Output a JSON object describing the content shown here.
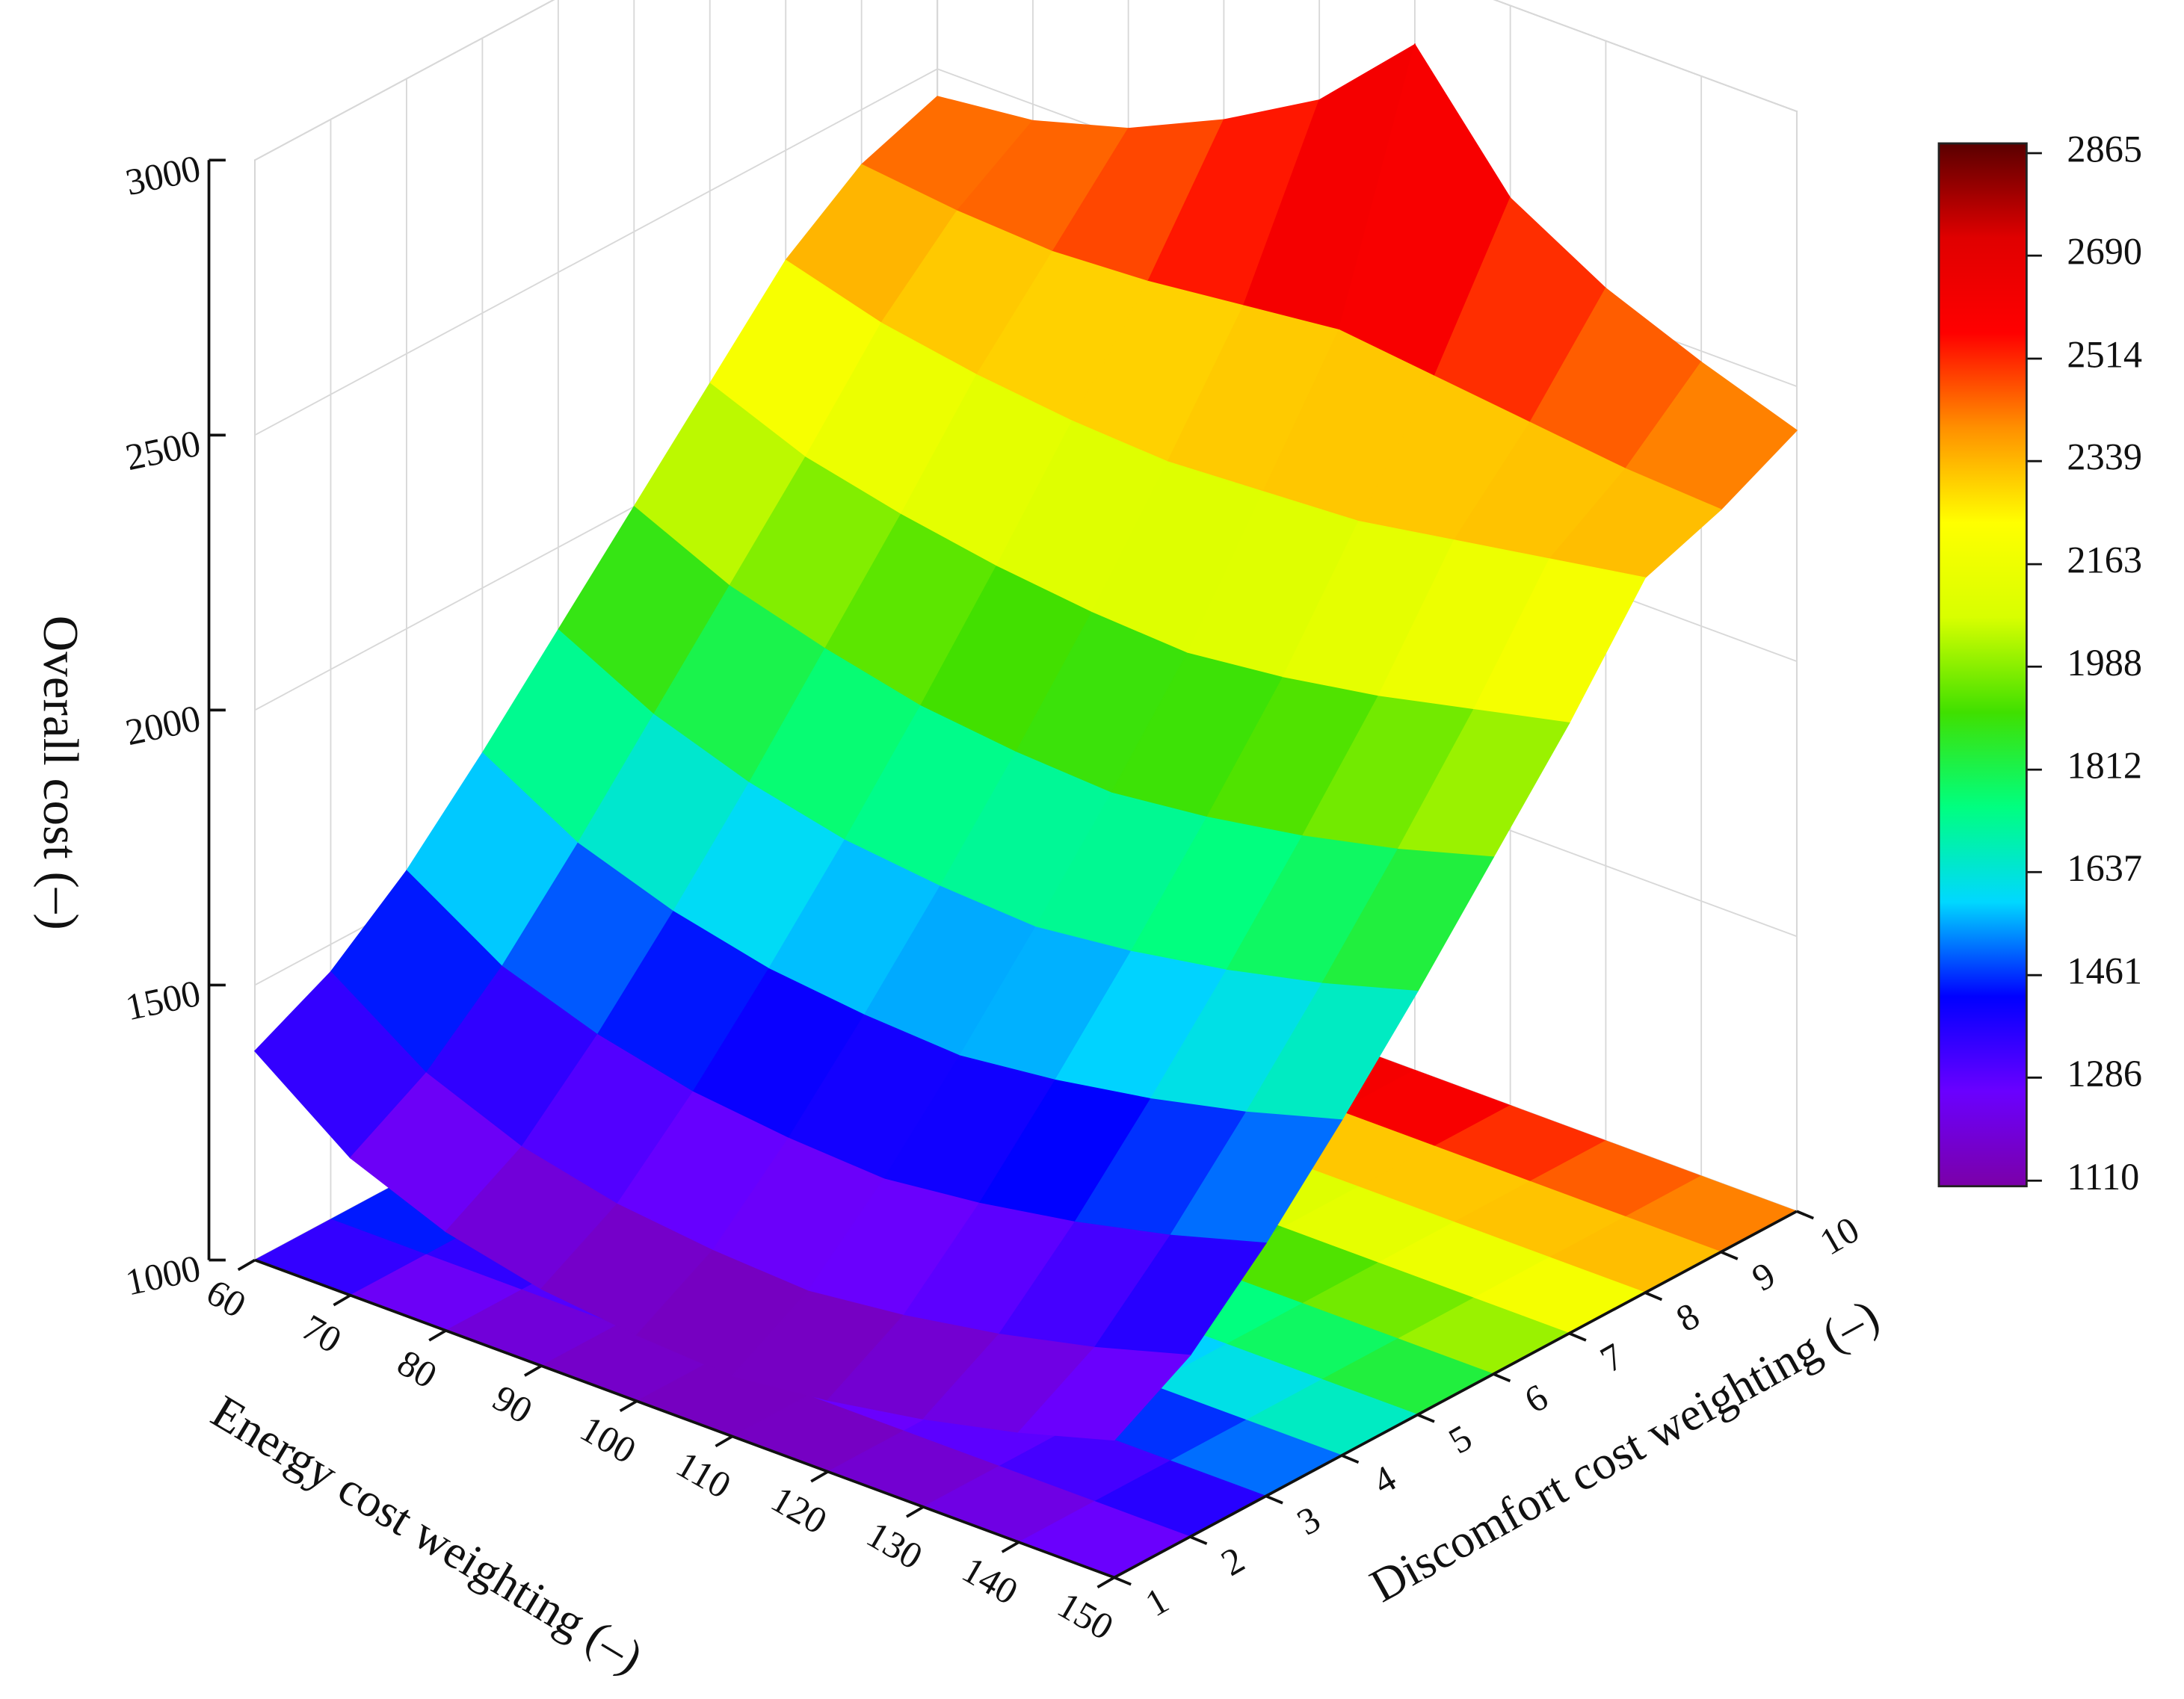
{
  "chart_data": {
    "type": "surface",
    "x_label": "Energy cost weighting (–)",
    "y_label": "Discomfort cost weighting (–)",
    "z_label": "Overall cost (–)",
    "x": [
      60,
      70,
      80,
      90,
      100,
      110,
      120,
      130,
      140,
      150
    ],
    "y": [
      1,
      2,
      3,
      4,
      5,
      6,
      7,
      8,
      9,
      10
    ],
    "z": [
      [
        1380,
        1250,
        1180,
        1140,
        1120,
        1110,
        1130,
        1160,
        1200,
        1250
      ],
      [
        1450,
        1330,
        1260,
        1220,
        1200,
        1190,
        1210,
        1240,
        1280,
        1330
      ],
      [
        1560,
        1450,
        1390,
        1350,
        1330,
        1320,
        1340,
        1370,
        1410,
        1460
      ],
      [
        1700,
        1600,
        1540,
        1500,
        1480,
        1470,
        1490,
        1520,
        1560,
        1610
      ],
      [
        1850,
        1760,
        1700,
        1660,
        1640,
        1630,
        1650,
        1680,
        1720,
        1770
      ],
      [
        2000,
        1920,
        1870,
        1830,
        1810,
        1800,
        1820,
        1850,
        1890,
        1940
      ],
      [
        2150,
        2080,
        2040,
        2010,
        1990,
        1980,
        2000,
        2030,
        2070,
        2110
      ],
      [
        2300,
        2250,
        2220,
        2200,
        2190,
        2200,
        2210,
        2240,
        2270,
        2300
      ],
      [
        2400,
        2380,
        2370,
        2380,
        2400,
        2420,
        2400,
        2380,
        2360,
        2350
      ],
      [
        2450,
        2470,
        2520,
        2600,
        2700,
        2865,
        2650,
        2550,
        2480,
        2420
      ]
    ],
    "xlim": [
      60,
      150
    ],
    "ylim": [
      1,
      10
    ],
    "zlim": [
      1000,
      3000
    ],
    "xticks": [
      60,
      70,
      80,
      90,
      100,
      110,
      120,
      130,
      140,
      150
    ],
    "yticks": [
      1,
      2,
      3,
      4,
      5,
      6,
      7,
      8,
      9,
      10
    ],
    "zticks": [
      1000,
      1500,
      2000,
      2500,
      3000
    ],
    "colorbar": {
      "lim": [
        1110,
        2865
      ],
      "ticks": [
        1110,
        1286,
        1461,
        1637,
        1812,
        1988,
        2163,
        2339,
        2514,
        2690,
        2865
      ]
    },
    "colormap": [
      "#7b00a8",
      "#6a00ff",
      "#0000ff",
      "#00d8ff",
      "#00ff80",
      "#40e000",
      "#d8ff00",
      "#ffff00",
      "#ff9000",
      "#ff0000",
      "#e00000",
      "#5a0000"
    ],
    "grid": true,
    "floor_projection": true
  }
}
